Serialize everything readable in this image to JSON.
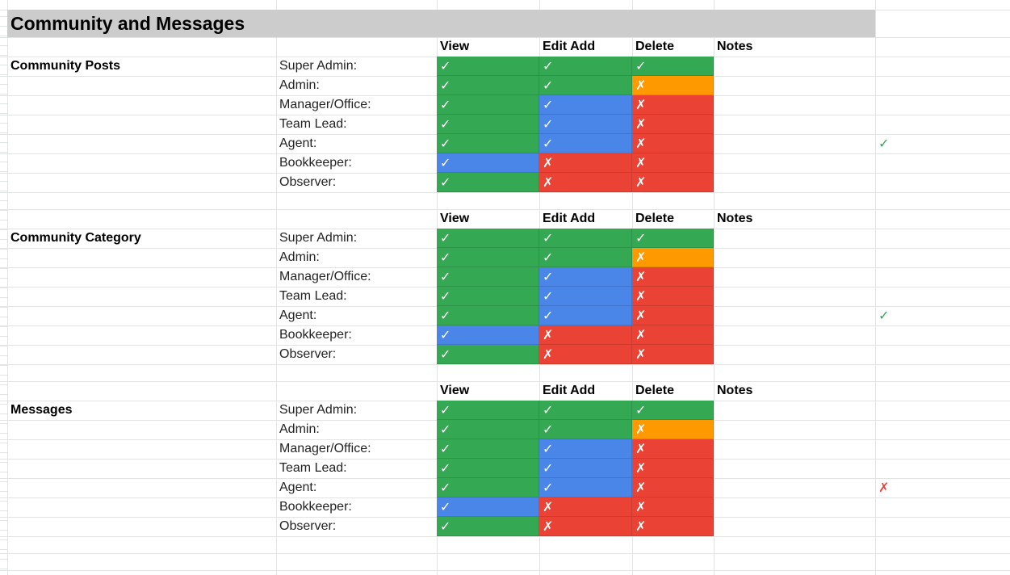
{
  "title": "Community and Messages",
  "columns": [
    "View",
    "Edit Add",
    "Delete",
    "Notes"
  ],
  "symbols": {
    "yes": "✓",
    "no": "✗"
  },
  "colors": {
    "green": "#34a853",
    "blue": "#4a86e8",
    "red": "#ea4335",
    "orange": "#ff9900",
    "header_bar": "#cccccc",
    "side_yes": "#34a853",
    "side_no": "#ea4335"
  },
  "sections": [
    {
      "name": "Community Posts",
      "side_mark": "yes",
      "rows": [
        {
          "role": "Super Admin:",
          "cells": [
            [
              "yes",
              "green"
            ],
            [
              "yes",
              "green"
            ],
            [
              "yes",
              "green"
            ]
          ]
        },
        {
          "role": "Admin:",
          "cells": [
            [
              "yes",
              "green"
            ],
            [
              "yes",
              "green"
            ],
            [
              "no",
              "orange"
            ]
          ]
        },
        {
          "role": "Manager/Office:",
          "cells": [
            [
              "yes",
              "green"
            ],
            [
              "yes",
              "blue"
            ],
            [
              "no",
              "red"
            ]
          ]
        },
        {
          "role": "Team Lead:",
          "cells": [
            [
              "yes",
              "green"
            ],
            [
              "yes",
              "blue"
            ],
            [
              "no",
              "red"
            ]
          ]
        },
        {
          "role": "Agent:",
          "cells": [
            [
              "yes",
              "green"
            ],
            [
              "yes",
              "blue"
            ],
            [
              "no",
              "red"
            ]
          ]
        },
        {
          "role": "Bookkeeper:",
          "cells": [
            [
              "yes",
              "blue"
            ],
            [
              "no",
              "red"
            ],
            [
              "no",
              "red"
            ]
          ]
        },
        {
          "role": "Observer:",
          "cells": [
            [
              "yes",
              "green"
            ],
            [
              "no",
              "red"
            ],
            [
              "no",
              "red"
            ]
          ]
        }
      ]
    },
    {
      "name": "Community Category",
      "side_mark": "yes",
      "rows": [
        {
          "role": "Super Admin:",
          "cells": [
            [
              "yes",
              "green"
            ],
            [
              "yes",
              "green"
            ],
            [
              "yes",
              "green"
            ]
          ]
        },
        {
          "role": "Admin:",
          "cells": [
            [
              "yes",
              "green"
            ],
            [
              "yes",
              "green"
            ],
            [
              "no",
              "orange"
            ]
          ]
        },
        {
          "role": "Manager/Office:",
          "cells": [
            [
              "yes",
              "green"
            ],
            [
              "yes",
              "blue"
            ],
            [
              "no",
              "red"
            ]
          ]
        },
        {
          "role": "Team Lead:",
          "cells": [
            [
              "yes",
              "green"
            ],
            [
              "yes",
              "blue"
            ],
            [
              "no",
              "red"
            ]
          ]
        },
        {
          "role": "Agent:",
          "cells": [
            [
              "yes",
              "green"
            ],
            [
              "yes",
              "blue"
            ],
            [
              "no",
              "red"
            ]
          ]
        },
        {
          "role": "Bookkeeper:",
          "cells": [
            [
              "yes",
              "blue"
            ],
            [
              "no",
              "red"
            ],
            [
              "no",
              "red"
            ]
          ]
        },
        {
          "role": "Observer:",
          "cells": [
            [
              "yes",
              "green"
            ],
            [
              "no",
              "red"
            ],
            [
              "no",
              "red"
            ]
          ]
        }
      ]
    },
    {
      "name": "Messages",
      "side_mark": "no",
      "rows": [
        {
          "role": "Super Admin:",
          "cells": [
            [
              "yes",
              "green"
            ],
            [
              "yes",
              "green"
            ],
            [
              "yes",
              "green"
            ]
          ]
        },
        {
          "role": "Admin:",
          "cells": [
            [
              "yes",
              "green"
            ],
            [
              "yes",
              "green"
            ],
            [
              "no",
              "orange"
            ]
          ]
        },
        {
          "role": "Manager/Office:",
          "cells": [
            [
              "yes",
              "green"
            ],
            [
              "yes",
              "blue"
            ],
            [
              "no",
              "red"
            ]
          ]
        },
        {
          "role": "Team Lead:",
          "cells": [
            [
              "yes",
              "green"
            ],
            [
              "yes",
              "blue"
            ],
            [
              "no",
              "red"
            ]
          ]
        },
        {
          "role": "Agent:",
          "cells": [
            [
              "yes",
              "green"
            ],
            [
              "yes",
              "blue"
            ],
            [
              "no",
              "red"
            ]
          ]
        },
        {
          "role": "Bookkeeper:",
          "cells": [
            [
              "yes",
              "blue"
            ],
            [
              "no",
              "red"
            ],
            [
              "no",
              "red"
            ]
          ]
        },
        {
          "role": "Observer:",
          "cells": [
            [
              "yes",
              "green"
            ],
            [
              "no",
              "red"
            ],
            [
              "no",
              "red"
            ]
          ]
        }
      ]
    }
  ]
}
